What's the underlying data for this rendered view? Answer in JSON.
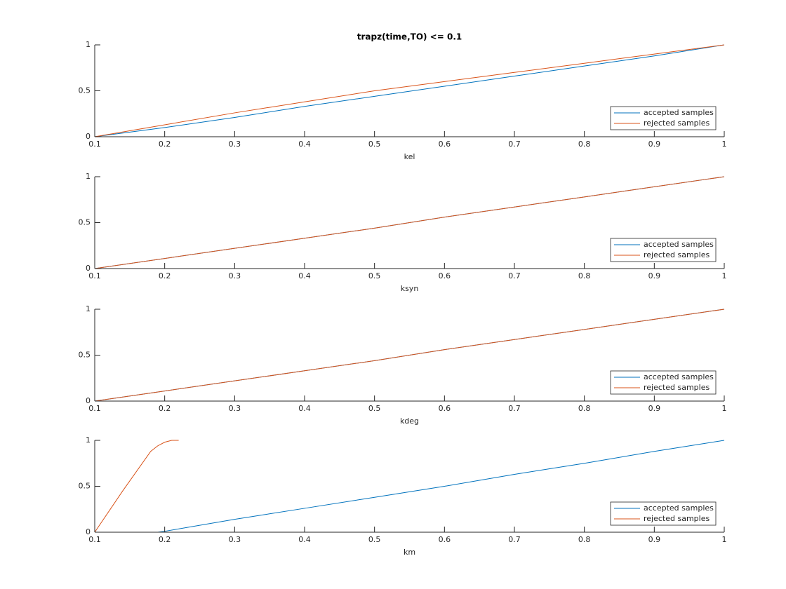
{
  "chart_data": [
    {
      "type": "line",
      "title": "trapz(time,TO) <= 0.1",
      "xlabel": "kel",
      "xlim": [
        0.1,
        1
      ],
      "ylim": [
        0,
        1
      ],
      "xticks": [
        0.1,
        0.2,
        0.3,
        0.4,
        0.5,
        0.6,
        0.7,
        0.8,
        0.9,
        1
      ],
      "yticks": [
        0,
        0.5,
        1
      ],
      "legend": "southeast",
      "series": [
        {
          "name": "accepted samples",
          "color": "#0072bd",
          "x": [
            0.1,
            0.2,
            0.3,
            0.4,
            0.5,
            0.6,
            0.7,
            0.8,
            0.9,
            1
          ],
          "values": [
            0,
            0.1,
            0.21,
            0.33,
            0.44,
            0.55,
            0.66,
            0.77,
            0.88,
            1
          ]
        },
        {
          "name": "rejected samples",
          "color": "#d95319",
          "x": [
            0.1,
            0.2,
            0.3,
            0.4,
            0.5,
            0.6,
            0.7,
            0.8,
            0.9,
            1
          ],
          "values": [
            0,
            0.13,
            0.26,
            0.38,
            0.5,
            0.6,
            0.7,
            0.8,
            0.9,
            1
          ]
        }
      ]
    },
    {
      "type": "line",
      "xlabel": "ksyn",
      "xlim": [
        0.1,
        1
      ],
      "ylim": [
        0,
        1
      ],
      "xticks": [
        0.1,
        0.2,
        0.3,
        0.4,
        0.5,
        0.6,
        0.7,
        0.8,
        0.9,
        1
      ],
      "yticks": [
        0,
        0.5,
        1
      ],
      "legend": "southeast",
      "series": [
        {
          "name": "accepted samples",
          "color": "#0072bd",
          "x": [
            0.1,
            0.2,
            0.3,
            0.4,
            0.5,
            0.6,
            0.7,
            0.8,
            0.9,
            1
          ],
          "values": [
            0,
            0.11,
            0.22,
            0.33,
            0.44,
            0.56,
            0.67,
            0.78,
            0.89,
            1
          ]
        },
        {
          "name": "rejected samples",
          "color": "#d95319",
          "x": [
            0.1,
            0.2,
            0.3,
            0.4,
            0.5,
            0.6,
            0.7,
            0.8,
            0.9,
            1
          ],
          "values": [
            0,
            0.11,
            0.22,
            0.33,
            0.44,
            0.56,
            0.67,
            0.78,
            0.89,
            1
          ]
        }
      ]
    },
    {
      "type": "line",
      "xlabel": "kdeg",
      "xlim": [
        0.1,
        1
      ],
      "ylim": [
        0,
        1
      ],
      "xticks": [
        0.1,
        0.2,
        0.3,
        0.4,
        0.5,
        0.6,
        0.7,
        0.8,
        0.9,
        1
      ],
      "yticks": [
        0,
        0.5,
        1
      ],
      "legend": "southeast",
      "series": [
        {
          "name": "accepted samples",
          "color": "#0072bd",
          "x": [
            0.1,
            0.2,
            0.3,
            0.4,
            0.5,
            0.6,
            0.7,
            0.8,
            0.9,
            1
          ],
          "values": [
            0,
            0.11,
            0.22,
            0.33,
            0.44,
            0.56,
            0.67,
            0.78,
            0.89,
            1
          ]
        },
        {
          "name": "rejected samples",
          "color": "#d95319",
          "x": [
            0.1,
            0.2,
            0.3,
            0.4,
            0.5,
            0.6,
            0.7,
            0.8,
            0.9,
            1
          ],
          "values": [
            0,
            0.11,
            0.22,
            0.33,
            0.44,
            0.56,
            0.67,
            0.78,
            0.89,
            1
          ]
        }
      ]
    },
    {
      "type": "line",
      "xlabel": "km",
      "xlim": [
        0.1,
        1
      ],
      "ylim": [
        0,
        1
      ],
      "xticks": [
        0.1,
        0.2,
        0.3,
        0.4,
        0.5,
        0.6,
        0.7,
        0.8,
        0.9,
        1
      ],
      "yticks": [
        0,
        0.5,
        1
      ],
      "legend": "southeast",
      "series": [
        {
          "name": "accepted samples",
          "color": "#0072bd",
          "x": [
            0.1,
            0.19,
            0.2,
            0.3,
            0.4,
            0.5,
            0.6,
            0.7,
            0.8,
            0.9,
            1
          ],
          "values": [
            0,
            0,
            0.01,
            0.14,
            0.26,
            0.38,
            0.5,
            0.63,
            0.75,
            0.88,
            1
          ]
        },
        {
          "name": "rejected samples",
          "color": "#d95319",
          "x": [
            0.1,
            0.14,
            0.18,
            0.19,
            0.2,
            0.21,
            0.22
          ],
          "values": [
            0,
            0.45,
            0.88,
            0.94,
            0.98,
            1,
            1
          ]
        }
      ]
    }
  ]
}
